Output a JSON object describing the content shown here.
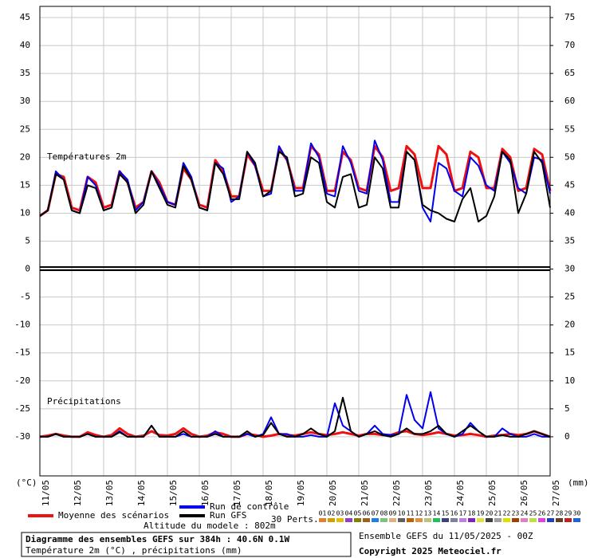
{
  "chart_data": {
    "type": "line",
    "annotations": [
      "Températures 2m",
      "Précipitations"
    ],
    "y_label": "(°C)",
    "y2_label": "(mm)",
    "x": [
      0,
      6,
      12,
      18,
      24,
      30,
      36,
      42,
      48,
      54,
      60,
      66,
      72,
      78,
      84,
      90,
      96,
      102,
      108,
      114,
      120,
      126,
      132,
      138,
      144,
      150,
      156,
      162,
      168,
      174,
      180,
      186,
      192,
      198,
      204,
      210,
      216,
      222,
      228,
      234,
      240,
      246,
      252,
      258,
      264,
      270,
      276,
      282,
      288,
      294,
      300,
      306,
      312,
      318,
      324,
      330,
      336,
      342,
      348,
      354,
      360,
      366,
      372,
      378,
      384
    ],
    "xlim": [
      0,
      384
    ],
    "xticks": [
      {
        "value": 0,
        "label": "11/05"
      },
      {
        "value": 24,
        "label": "12/05"
      },
      {
        "value": 48,
        "label": "13/05"
      },
      {
        "value": 72,
        "label": "14/05"
      },
      {
        "value": 96,
        "label": "15/05"
      },
      {
        "value": 120,
        "label": "16/05"
      },
      {
        "value": 144,
        "label": "17/05"
      },
      {
        "value": 168,
        "label": "18/05"
      },
      {
        "value": 192,
        "label": "19/05"
      },
      {
        "value": 216,
        "label": "20/05"
      },
      {
        "value": 240,
        "label": "21/05"
      },
      {
        "value": 264,
        "label": "22/05"
      },
      {
        "value": 288,
        "label": "23/05"
      },
      {
        "value": 312,
        "label": "24/05"
      },
      {
        "value": 336,
        "label": "25/05"
      },
      {
        "value": 360,
        "label": "26/05"
      },
      {
        "value": 384,
        "label": "27/05"
      }
    ],
    "ylim": [
      -37,
      47
    ],
    "yticks": [
      -30,
      -25,
      -20,
      -15,
      -10,
      -5,
      0,
      5,
      10,
      15,
      20,
      25,
      30,
      35,
      40,
      45
    ],
    "y2lim": [
      -7,
      77
    ],
    "y2ticks": [
      0,
      5,
      10,
      15,
      20,
      25,
      30,
      35,
      40,
      45,
      50,
      55,
      60,
      65,
      70,
      75
    ],
    "grid": true,
    "series": [
      {
        "name": "Moyenne des scénarios",
        "color": "#ee1111",
        "width": 3,
        "axis": "y",
        "values": [
          9.5,
          10.5,
          17,
          16.5,
          11,
          10.5,
          16.5,
          15.5,
          11,
          11.5,
          17.5,
          15.5,
          11,
          12,
          17.5,
          15.5,
          12,
          11.5,
          18,
          16,
          11.5,
          11,
          19.5,
          17.5,
          13,
          13,
          20.5,
          18.5,
          14,
          14,
          21.5,
          19.5,
          14.5,
          14.5,
          22,
          20.5,
          14,
          14,
          21,
          19.5,
          14.5,
          14,
          22,
          20,
          14,
          14.5,
          22,
          20.5,
          14.5,
          14.5,
          22,
          20.5,
          14,
          14.5,
          21,
          20,
          14.5,
          14.5,
          21.5,
          20,
          14,
          14.5,
          21.5,
          20.5,
          14
        ]
      },
      {
        "name": "Run de contrôle",
        "color": "#0000ee",
        "width": 2,
        "axis": "y",
        "values": [
          9.5,
          10.5,
          17.5,
          16,
          10.5,
          10,
          16.5,
          15,
          10.5,
          11,
          17.5,
          16,
          10.5,
          12,
          17.5,
          15,
          12,
          11.5,
          19,
          16.5,
          11,
          10.5,
          19,
          18,
          12,
          13,
          21,
          18.5,
          13,
          13.5,
          22,
          19.5,
          14,
          14,
          22.5,
          20,
          13.5,
          13,
          22,
          19,
          14,
          13.5,
          23,
          19.5,
          12,
          12,
          21,
          19.5,
          11,
          8.5,
          19,
          18,
          14,
          13,
          20,
          18.5,
          15,
          14,
          21,
          19,
          14.5,
          13.5,
          20,
          19.5,
          13.5
        ]
      },
      {
        "name": "Run GFS",
        "color": "#000000",
        "width": 2,
        "axis": "y",
        "values": [
          9.5,
          10.5,
          17,
          16,
          10.5,
          10,
          15,
          14.5,
          10.5,
          11,
          17,
          15.5,
          10,
          11.5,
          17.5,
          14.5,
          11.5,
          11,
          18.5,
          16,
          11,
          10.5,
          19,
          17,
          12.5,
          12.5,
          21,
          19,
          13,
          14,
          21,
          20,
          13,
          13.5,
          20,
          19,
          12,
          11,
          16.5,
          17,
          11,
          11.5,
          20,
          18,
          11,
          11,
          21,
          19.5,
          11.5,
          10.5,
          10,
          9,
          8.5,
          12.5,
          14.5,
          8.5,
          9.5,
          13,
          21,
          19.5,
          10,
          13.5,
          21,
          19,
          11
        ]
      },
      {
        "name": "Moyenne des scénarios",
        "color": "#ee1111",
        "width": 3,
        "axis": "y2",
        "values": [
          0,
          0.2,
          0.5,
          0.2,
          0,
          0,
          0.8,
          0.3,
          0,
          0.3,
          1.5,
          0.5,
          0,
          0.2,
          1,
          0.3,
          0.2,
          0.5,
          1.5,
          0.5,
          0,
          0.2,
          0.8,
          0.5,
          0,
          0,
          0.5,
          0.3,
          0,
          0.2,
          0.5,
          0.3,
          0.2,
          0.5,
          0.8,
          0.5,
          0.3,
          0.5,
          0.8,
          0.5,
          0.2,
          0.5,
          0.5,
          0.3,
          0.3,
          0.8,
          1,
          0.5,
          0.3,
          0.5,
          0.8,
          0.5,
          0.2,
          0.3,
          0.5,
          0.3,
          0,
          0.2,
          0.3,
          0.5,
          0.3,
          0.5,
          1,
          0.5,
          0
        ]
      },
      {
        "name": "Run de contrôle",
        "color": "#0000ee",
        "width": 2,
        "axis": "y2",
        "values": [
          0,
          0,
          0.5,
          0,
          0,
          0,
          0.5,
          0,
          0,
          0,
          1,
          0,
          0,
          0,
          2,
          0,
          0,
          0,
          0.5,
          0,
          0,
          0,
          1,
          0,
          0,
          0,
          0.5,
          0,
          0.5,
          3.5,
          0.5,
          0.5,
          0,
          0,
          0.3,
          0,
          0,
          6,
          2,
          1,
          0,
          0.5,
          2,
          0.5,
          0.3,
          0.5,
          7.5,
          3,
          1.5,
          8,
          1.5,
          0.5,
          0,
          0.5,
          2.5,
          1,
          0,
          0,
          1.5,
          0.5,
          0,
          0,
          0.5,
          0,
          0
        ]
      },
      {
        "name": "Run GFS",
        "color": "#000000",
        "width": 2,
        "axis": "y2",
        "values": [
          0,
          0,
          0.5,
          0,
          0,
          0,
          0.5,
          0,
          0,
          0,
          0.8,
          0,
          0,
          0,
          2,
          0,
          0,
          0,
          1,
          0,
          0,
          0,
          0.5,
          0,
          0,
          0,
          1,
          0,
          0.3,
          2.5,
          0.5,
          0,
          0,
          0.5,
          1.5,
          0.5,
          0,
          1,
          7,
          1,
          0,
          0.5,
          1,
          0.3,
          0,
          0.5,
          1.5,
          0.5,
          0.5,
          1,
          2,
          0.5,
          0,
          1,
          2,
          1,
          0,
          0,
          0.3,
          0,
          0,
          0.5,
          1,
          0.5,
          0
        ]
      }
    ],
    "perturbations": {
      "label": "30 Perts.",
      "items": [
        {
          "name": "01",
          "color": "#e08030"
        },
        {
          "name": "02",
          "color": "#d0a000"
        },
        {
          "name": "03",
          "color": "#e0c000"
        },
        {
          "name": "04",
          "color": "#9040c0"
        },
        {
          "name": "05",
          "color": "#808000"
        },
        {
          "name": "06",
          "color": "#a06020"
        },
        {
          "name": "07",
          "color": "#2080e0"
        },
        {
          "name": "08",
          "color": "#80c080"
        },
        {
          "name": "09",
          "color": "#e0b080"
        },
        {
          "name": "10",
          "color": "#606060"
        },
        {
          "name": "11",
          "color": "#c06000"
        },
        {
          "name": "12",
          "color": "#e09040"
        },
        {
          "name": "13",
          "color": "#c0c080"
        },
        {
          "name": "14",
          "color": "#20c060"
        },
        {
          "name": "15",
          "color": "#404080"
        },
        {
          "name": "16",
          "color": "#8080a0"
        },
        {
          "name": "17",
          "color": "#c080e0"
        },
        {
          "name": "18",
          "color": "#8020c0"
        },
        {
          "name": "19",
          "color": "#e0e040"
        },
        {
          "name": "20",
          "color": "#404040"
        },
        {
          "name": "21",
          "color": "#a0a0a0"
        },
        {
          "name": "22",
          "color": "#e0e000"
        },
        {
          "name": "23",
          "color": "#a04000"
        },
        {
          "name": "24",
          "color": "#e080c0"
        },
        {
          "name": "25",
          "color": "#c0e040"
        },
        {
          "name": "26",
          "color": "#e040e0"
        },
        {
          "name": "27",
          "color": "#2040c0"
        },
        {
          "name": "28",
          "color": "#604020"
        },
        {
          "name": "29",
          "color": "#c02020"
        },
        {
          "name": "30",
          "color": "#2060e0"
        }
      ]
    },
    "altitude": "Altitude du modele : 802m",
    "title": "Diagramme des ensembles GEFS sur 384h : 40.6N 0.1W",
    "subtitle": "Température 2m (°C) , précipitations (mm)",
    "run_info": "Ensemble GEFS du 11/05/2025 - 00Z",
    "copyright": "Copyright 2025 Meteociel.fr"
  }
}
